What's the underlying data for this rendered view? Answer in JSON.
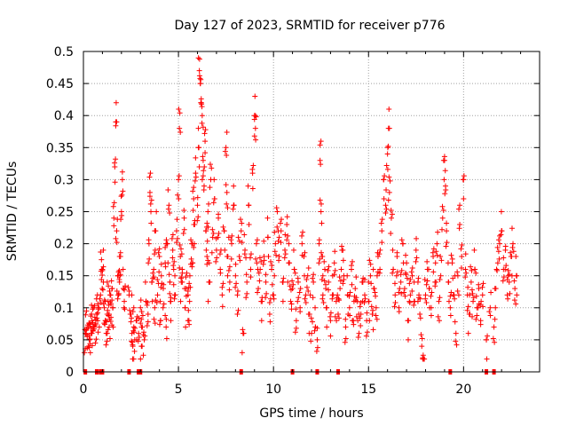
{
  "chart_data": {
    "type": "scatter",
    "title": "Day 127 of 2023, SRMTID for receiver p776",
    "xlabel": "GPS time / hours",
    "ylabel": "SRMTID / TECUs",
    "xlim": [
      0,
      24
    ],
    "ylim": [
      0,
      0.5
    ],
    "x_ticks": [
      0,
      5,
      10,
      15,
      20
    ],
    "x_tick_labels": [
      "0",
      "5",
      "10",
      "15",
      "20"
    ],
    "y_ticks": [
      0,
      0.05,
      0.1,
      0.15,
      0.2,
      0.25,
      0.3,
      0.35,
      0.4,
      0.45,
      0.5
    ],
    "y_tick_labels": [
      "0",
      "0.05",
      "0.1",
      "0.15",
      "0.2",
      "0.25",
      "0.3",
      "0.35",
      "0.4",
      "0.45",
      "0.5"
    ],
    "grid": true,
    "marker": "+",
    "color": "#ff0000",
    "series": [
      {
        "name": "SRMTID",
        "points": [
          [
            0.1,
            0.06
          ],
          [
            0.15,
            0.065
          ],
          [
            0.2,
            0.055
          ],
          [
            0.25,
            0.07
          ],
          [
            0.3,
            0.05
          ],
          [
            0.35,
            0.075
          ],
          [
            0.4,
            0.06
          ],
          [
            0.45,
            0.08
          ],
          [
            0.5,
            0.065
          ],
          [
            0.55,
            0.07
          ],
          [
            0.6,
            0.085
          ],
          [
            0.65,
            0.075
          ],
          [
            0.7,
            0.09
          ],
          [
            0.75,
            0.08
          ],
          [
            0.8,
            0.1
          ],
          [
            0.9,
            0.12
          ],
          [
            0.95,
            0.175
          ],
          [
            1.0,
            0.16
          ],
          [
            1.05,
            0.14
          ],
          [
            1.1,
            0.1
          ],
          [
            1.15,
            0.08
          ],
          [
            1.2,
            0.06
          ],
          [
            1.25,
            0.09
          ],
          [
            1.3,
            0.11
          ],
          [
            1.35,
            0.07
          ],
          [
            1.4,
            0.12
          ],
          [
            1.45,
            0.085
          ],
          [
            1.5,
            0.13
          ],
          [
            1.55,
            0.1
          ],
          [
            1.6,
            0.24
          ],
          [
            1.65,
            0.32
          ],
          [
            1.7,
            0.39
          ],
          [
            1.75,
            0.22
          ],
          [
            1.8,
            0.15
          ],
          [
            1.85,
            0.12
          ],
          [
            1.9,
            0.14
          ],
          [
            1.95,
            0.18
          ],
          [
            2.0,
            0.25
          ],
          [
            2.05,
            0.3
          ],
          [
            2.1,
            0.13
          ],
          [
            2.15,
            0.11
          ],
          [
            2.4,
            0.12
          ],
          [
            2.5,
            0.09
          ],
          [
            2.55,
            0.06
          ],
          [
            2.6,
            0.04
          ],
          [
            2.65,
            0.07
          ],
          [
            2.7,
            0.05
          ],
          [
            2.8,
            0.08
          ],
          [
            2.9,
            0.06
          ],
          [
            3.0,
            0.1
          ],
          [
            3.05,
            0.04
          ],
          [
            3.1,
            0.07
          ],
          [
            3.2,
            0.05
          ],
          [
            3.3,
            0.11
          ],
          [
            3.4,
            0.09
          ],
          [
            3.45,
            0.2
          ],
          [
            3.5,
            0.28
          ],
          [
            3.55,
            0.25
          ],
          [
            3.6,
            0.14
          ],
          [
            3.7,
            0.16
          ],
          [
            3.75,
            0.1
          ],
          [
            3.8,
            0.22
          ],
          [
            3.9,
            0.12
          ],
          [
            4.0,
            0.18
          ],
          [
            4.05,
            0.08
          ],
          [
            4.1,
            0.15
          ],
          [
            4.2,
            0.13
          ],
          [
            4.3,
            0.17
          ],
          [
            4.35,
            0.07
          ],
          [
            4.4,
            0.2
          ],
          [
            4.5,
            0.26
          ],
          [
            4.55,
            0.14
          ],
          [
            4.6,
            0.11
          ],
          [
            4.7,
            0.19
          ],
          [
            4.75,
            0.16
          ],
          [
            4.8,
            0.12
          ],
          [
            4.9,
            0.22
          ],
          [
            5.0,
            0.3
          ],
          [
            5.05,
            0.38
          ],
          [
            5.1,
            0.18
          ],
          [
            5.15,
            0.14
          ],
          [
            5.2,
            0.16
          ],
          [
            5.3,
            0.24
          ],
          [
            5.35,
            0.1
          ],
          [
            5.4,
            0.13
          ],
          [
            5.5,
            0.12
          ],
          [
            5.55,
            0.08
          ],
          [
            5.6,
            0.15
          ],
          [
            5.7,
            0.2
          ],
          [
            5.75,
            0.17
          ],
          [
            5.8,
            0.27
          ],
          [
            5.85,
            0.23
          ],
          [
            5.9,
            0.31
          ],
          [
            6.0,
            0.26
          ],
          [
            6.05,
            0.35
          ],
          [
            6.1,
            0.47
          ],
          [
            6.15,
            0.45
          ],
          [
            6.2,
            0.42
          ],
          [
            6.25,
            0.4
          ],
          [
            6.3,
            0.33
          ],
          [
            6.35,
            0.29
          ],
          [
            6.4,
            0.36
          ],
          [
            6.45,
            0.22
          ],
          [
            6.5,
            0.18
          ],
          [
            6.55,
            0.25
          ],
          [
            6.6,
            0.14
          ],
          [
            6.7,
            0.3
          ],
          [
            6.8,
            0.21
          ],
          [
            6.9,
            0.27
          ],
          [
            7.0,
            0.19
          ],
          [
            7.1,
            0.24
          ],
          [
            7.2,
            0.16
          ],
          [
            7.3,
            0.12
          ],
          [
            7.4,
            0.22
          ],
          [
            7.5,
            0.35
          ],
          [
            7.55,
            0.28
          ],
          [
            7.6,
            0.18
          ],
          [
            7.7,
            0.14
          ],
          [
            7.8,
            0.2
          ],
          [
            7.9,
            0.26
          ],
          [
            8.0,
            0.15
          ],
          [
            8.1,
            0.12
          ],
          [
            8.2,
            0.18
          ],
          [
            8.3,
            0.22
          ],
          [
            8.4,
            0.06
          ],
          [
            8.5,
            0.19
          ],
          [
            8.6,
            0.14
          ],
          [
            8.7,
            0.26
          ],
          [
            8.8,
            0.16
          ],
          [
            8.9,
            0.31
          ],
          [
            9.0,
            0.4
          ],
          [
            9.05,
            0.38
          ],
          [
            9.1,
            0.2
          ],
          [
            9.2,
            0.13
          ],
          [
            9.3,
            0.16
          ],
          [
            9.4,
            0.11
          ],
          [
            9.5,
            0.18
          ],
          [
            9.6,
            0.14
          ],
          [
            9.7,
            0.21
          ],
          [
            9.8,
            0.09
          ],
          [
            9.9,
            0.16
          ],
          [
            10.0,
            0.12
          ],
          [
            10.1,
            0.2
          ],
          [
            10.2,
            0.25
          ],
          [
            10.3,
            0.18
          ],
          [
            10.4,
            0.22
          ],
          [
            10.5,
            0.14
          ],
          [
            10.6,
            0.19
          ],
          [
            10.7,
            0.23
          ],
          [
            10.8,
            0.17
          ],
          [
            10.9,
            0.11
          ],
          [
            11.0,
            0.13
          ],
          [
            11.1,
            0.16
          ],
          [
            11.2,
            0.08
          ],
          [
            11.3,
            0.14
          ],
          [
            11.4,
            0.1
          ],
          [
            11.5,
            0.2
          ],
          [
            11.6,
            0.18
          ],
          [
            11.7,
            0.12
          ],
          [
            11.8,
            0.15
          ],
          [
            11.9,
            0.09
          ],
          [
            12.0,
            0.06
          ],
          [
            12.1,
            0.14
          ],
          [
            12.2,
            0.07
          ],
          [
            12.3,
            0.05
          ],
          [
            12.4,
            0.2
          ],
          [
            12.45,
            0.33
          ],
          [
            12.5,
            0.25
          ],
          [
            12.55,
            0.18
          ],
          [
            12.6,
            0.12
          ],
          [
            12.7,
            0.16
          ],
          [
            12.8,
            0.1
          ],
          [
            12.9,
            0.14
          ],
          [
            13.0,
            0.08
          ],
          [
            13.1,
            0.12
          ],
          [
            13.2,
            0.17
          ],
          [
            13.3,
            0.11
          ],
          [
            13.4,
            0.09
          ],
          [
            13.5,
            0.13
          ],
          [
            13.6,
            0.19
          ],
          [
            13.7,
            0.15
          ],
          [
            13.8,
            0.07
          ],
          [
            13.9,
            0.12
          ],
          [
            14.0,
            0.1
          ],
          [
            14.1,
            0.16
          ],
          [
            14.2,
            0.08
          ],
          [
            14.3,
            0.13
          ],
          [
            14.4,
            0.11
          ],
          [
            14.5,
            0.06
          ],
          [
            14.6,
            0.09
          ],
          [
            14.7,
            0.14
          ],
          [
            14.8,
            0.12
          ],
          [
            14.9,
            0.08
          ],
          [
            15.0,
            0.11
          ],
          [
            15.1,
            0.15
          ],
          [
            15.2,
            0.09
          ],
          [
            15.3,
            0.13
          ],
          [
            15.4,
            0.1
          ],
          [
            15.5,
            0.18
          ],
          [
            15.6,
            0.16
          ],
          [
            15.7,
            0.22
          ],
          [
            15.8,
            0.3
          ],
          [
            15.9,
            0.26
          ],
          [
            16.0,
            0.34
          ],
          [
            16.05,
            0.38
          ],
          [
            16.1,
            0.28
          ],
          [
            16.2,
            0.24
          ],
          [
            16.3,
            0.16
          ],
          [
            16.4,
            0.12
          ],
          [
            16.5,
            0.18
          ],
          [
            16.6,
            0.1
          ],
          [
            16.7,
            0.14
          ],
          [
            16.8,
            0.2
          ],
          [
            16.9,
            0.13
          ],
          [
            17.0,
            0.17
          ],
          [
            17.1,
            0.08
          ],
          [
            17.2,
            0.12
          ],
          [
            17.3,
            0.15
          ],
          [
            17.4,
            0.11
          ],
          [
            17.5,
            0.19
          ],
          [
            17.6,
            0.14
          ],
          [
            17.7,
            0.09
          ],
          [
            17.8,
            0.04
          ],
          [
            17.9,
            0.02
          ],
          [
            18.0,
            0.12
          ],
          [
            18.1,
            0.16
          ],
          [
            18.2,
            0.13
          ],
          [
            18.3,
            0.1
          ],
          [
            18.4,
            0.18
          ],
          [
            18.5,
            0.14
          ],
          [
            18.6,
            0.2
          ],
          [
            18.7,
            0.11
          ],
          [
            18.8,
            0.15
          ],
          [
            18.9,
            0.24
          ],
          [
            19.0,
            0.33
          ],
          [
            19.05,
            0.29
          ],
          [
            19.1,
            0.22
          ],
          [
            19.2,
            0.14
          ],
          [
            19.3,
            0.1
          ],
          [
            19.4,
            0.17
          ],
          [
            19.5,
            0.12
          ],
          [
            19.6,
            0.06
          ],
          [
            19.7,
            0.15
          ],
          [
            19.8,
            0.23
          ],
          [
            19.9,
            0.18
          ],
          [
            20.0,
            0.3
          ],
          [
            20.1,
            0.16
          ],
          [
            20.2,
            0.12
          ],
          [
            20.3,
            0.09
          ],
          [
            20.4,
            0.14
          ],
          [
            20.5,
            0.11
          ],
          [
            20.6,
            0.16
          ],
          [
            20.7,
            0.1
          ],
          [
            20.8,
            0.13
          ],
          [
            20.9,
            0.08
          ],
          [
            21.0,
            0.12
          ],
          [
            21.2,
            0.05
          ],
          [
            21.4,
            0.1
          ],
          [
            21.6,
            0.07
          ],
          [
            21.7,
            0.13
          ],
          [
            21.8,
            0.17
          ],
          [
            21.9,
            0.2
          ],
          [
            22.0,
            0.22
          ],
          [
            22.1,
            0.16
          ],
          [
            22.2,
            0.19
          ],
          [
            22.3,
            0.12
          ],
          [
            22.4,
            0.14
          ],
          [
            22.5,
            0.18
          ],
          [
            22.6,
            0.2
          ],
          [
            22.7,
            0.13
          ],
          [
            22.8,
            0.15
          ]
        ],
        "zeros": [
          0.1,
          0.7,
          0.9,
          1.0,
          2.4,
          2.9,
          3.0,
          8.3,
          11.0,
          12.3,
          13.4,
          19.3,
          21.2,
          21.6
        ]
      }
    ]
  }
}
